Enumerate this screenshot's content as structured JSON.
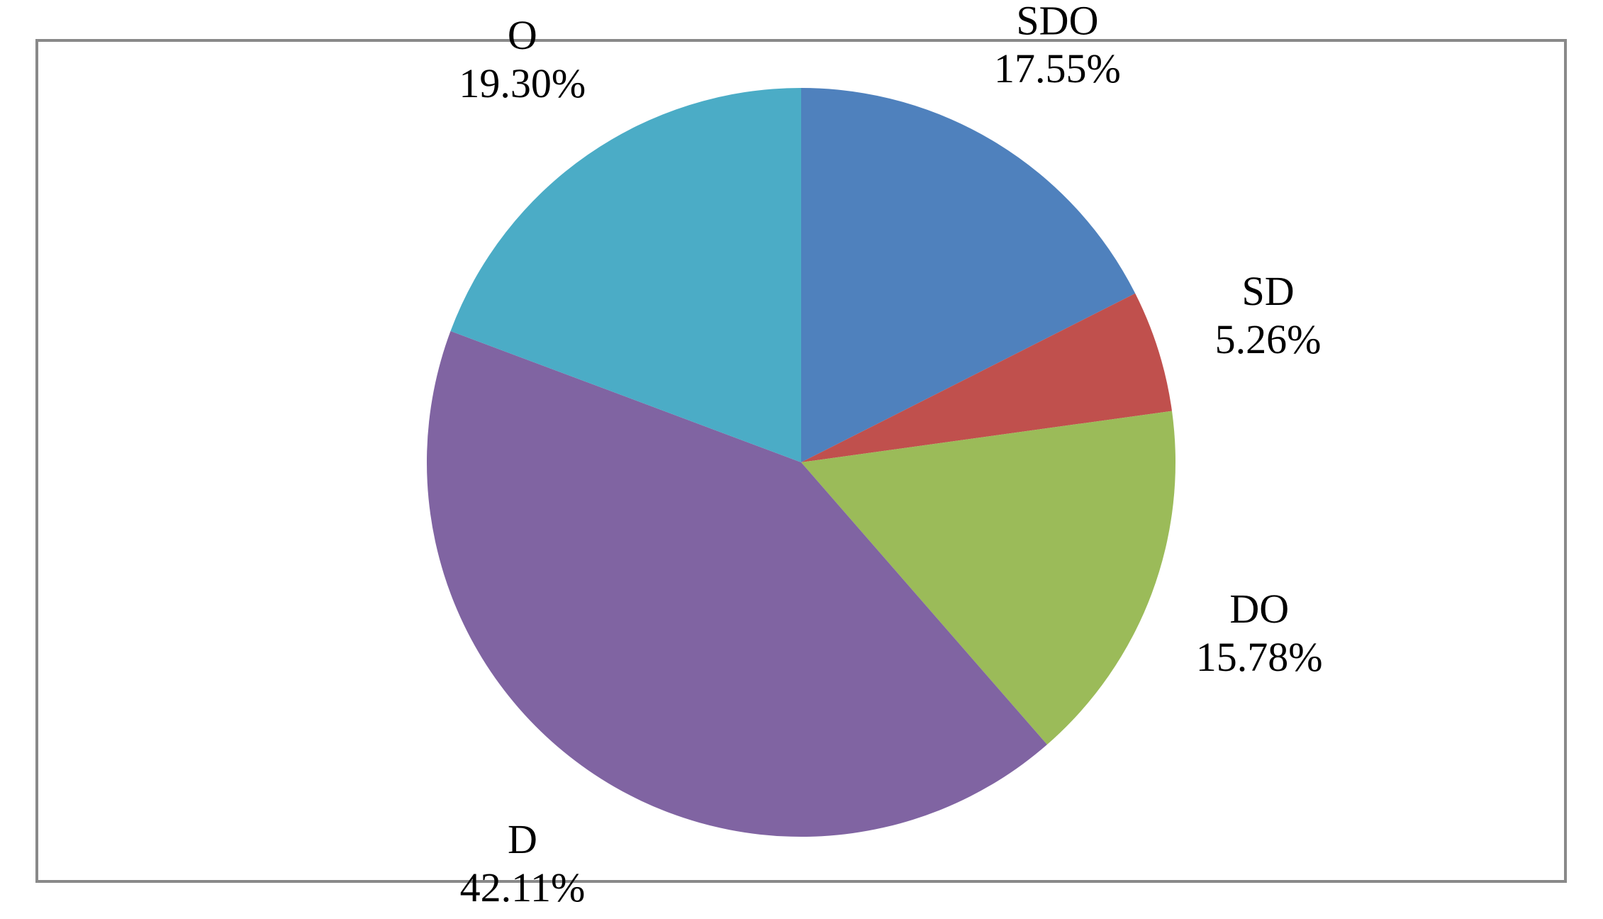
{
  "chart_data": {
    "type": "pie",
    "title": "",
    "start_angle_deg": 0,
    "direction": "clockwise",
    "slices": [
      {
        "label": "SDO",
        "value": 17.55,
        "value_label": "17.55%",
        "color": "#4F81BD"
      },
      {
        "label": "SD",
        "value": 5.26,
        "value_label": "5.26%",
        "color": "#C0504D"
      },
      {
        "label": "DO",
        "value": 15.78,
        "value_label": "15.78%",
        "color": "#9BBB59"
      },
      {
        "label": "D",
        "value": 42.11,
        "value_label": "42.11%",
        "color": "#8064A2"
      },
      {
        "label": "O",
        "value": 19.3,
        "value_label": "19.30%",
        "color": "#4BACC6"
      }
    ],
    "legend": "none",
    "data_labels": "outside"
  }
}
